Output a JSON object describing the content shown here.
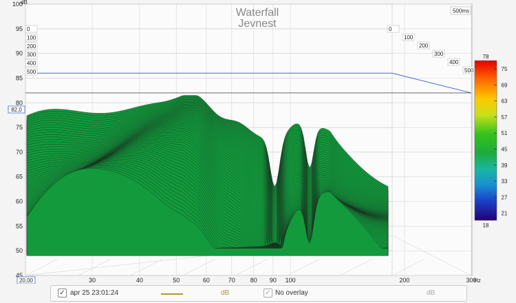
{
  "chart_data": {
    "type": "waterfall",
    "title": "Waterfall",
    "subtitle": "Jevnest",
    "time_label": "500ms",
    "ylabel": "dB",
    "ylim": [
      45,
      100
    ],
    "y_ticks": [
      "45",
      "50",
      "55",
      "60",
      "65",
      "70",
      "75",
      "80",
      "85",
      "90",
      "95",
      "100"
    ],
    "x_unit": "Hz",
    "x_ticks": [
      "30",
      "40",
      "50",
      "60",
      "70",
      "80",
      "90",
      "100",
      "200",
      "300"
    ],
    "xlim_label": "20,00",
    "ylim_label": "82,0",
    "time_ticks": [
      "0",
      "100",
      "200",
      "300",
      "400",
      "500"
    ],
    "colorbar": {
      "ticks": [
        "78",
        "75",
        "69",
        "63",
        "57",
        "51",
        "45",
        "39",
        "33",
        "27",
        "21",
        "18"
      ]
    },
    "reference_levels": [
      86,
      82
    ]
  },
  "controls": {
    "measurement": {
      "checked": true,
      "label": "apr 25 23:01:24",
      "unit": "dB",
      "line_color": "#b8932e"
    },
    "overlay": {
      "checked": true,
      "label": "No overlay",
      "unit": "dB"
    }
  }
}
